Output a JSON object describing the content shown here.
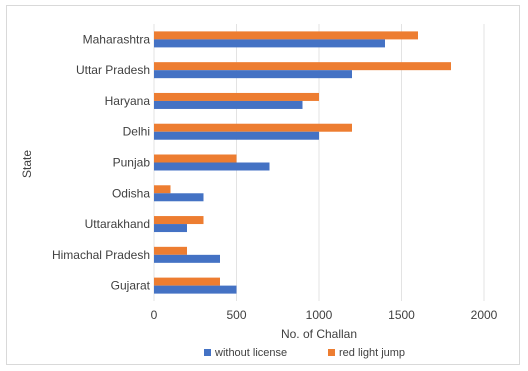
{
  "chart_data": {
    "type": "bar",
    "orientation": "horizontal",
    "categories": [
      "Maharashtra",
      "Uttar Pradesh",
      "Haryana",
      "Delhi",
      "Punjab",
      "Odisha",
      "Uttarakhand",
      "Himachal Pradesh",
      "Gujarat"
    ],
    "series": [
      {
        "name": "without license",
        "color": "#4472c4",
        "values": [
          1400,
          1200,
          900,
          1000,
          700,
          300,
          200,
          400,
          500
        ]
      },
      {
        "name": "red light jump",
        "color": "#ed7d31",
        "values": [
          1600,
          1800,
          1000,
          1200,
          500,
          100,
          300,
          200,
          400
        ]
      }
    ],
    "xlabel": "No. of Challan",
    "ylabel": "State",
    "xlim": [
      0,
      2000
    ],
    "xticks": [
      "0",
      "500",
      "1000",
      "1500",
      "2000"
    ],
    "grid": true,
    "legend_position": "bottom"
  }
}
